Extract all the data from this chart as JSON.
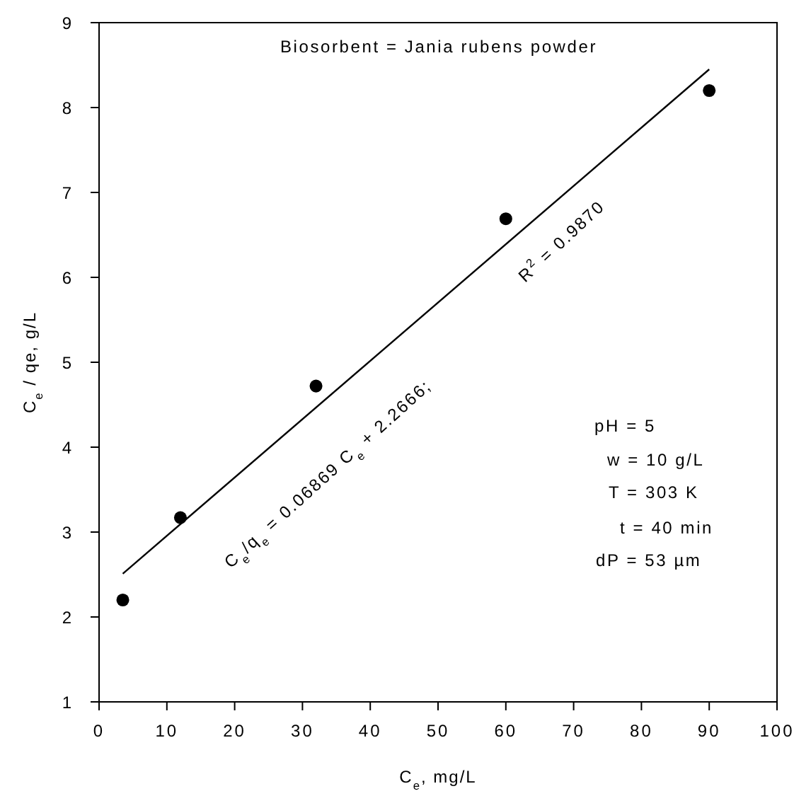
{
  "chart_data": {
    "type": "scatter",
    "xlabel": "C$_{e}$, mg/L",
    "ylabel": "C$_{e}$ / qe, g/L",
    "x": [
      3.5,
      12,
      32,
      60,
      90
    ],
    "marker": "circle",
    "series": [
      {
        "color": "#000000",
        "values": [
          2.2,
          3.17,
          4.72,
          6.69,
          8.2
        ]
      },
      {
        "type": "line",
        "x": [
          3.5,
          90
        ],
        "values": [
          2.51,
          8.45
        ],
        "color": "#000000",
        "marker": "none"
      }
    ],
    "xlim": [
      0,
      100
    ],
    "xticks": [
      0,
      10,
      20,
      30,
      40,
      50,
      60,
      70,
      80,
      90,
      100
    ],
    "ylim": [
      1,
      9
    ],
    "yticks": [
      1,
      2,
      3,
      4,
      5,
      6,
      7,
      8,
      9
    ],
    "grid": false,
    "legend": false,
    "annotations": [
      "Biosorbent = Jania rubens powder",
      "C$_{e}$/q$_{e}$ = 0.06869 C$_{e}$ + 2.2666;",
      "R$^{2}$ = 0.9870",
      "pH = 5",
      "w = 10 g/L",
      "T = 303 K",
      "t = 40 min",
      "dP = 53 µm"
    ]
  }
}
